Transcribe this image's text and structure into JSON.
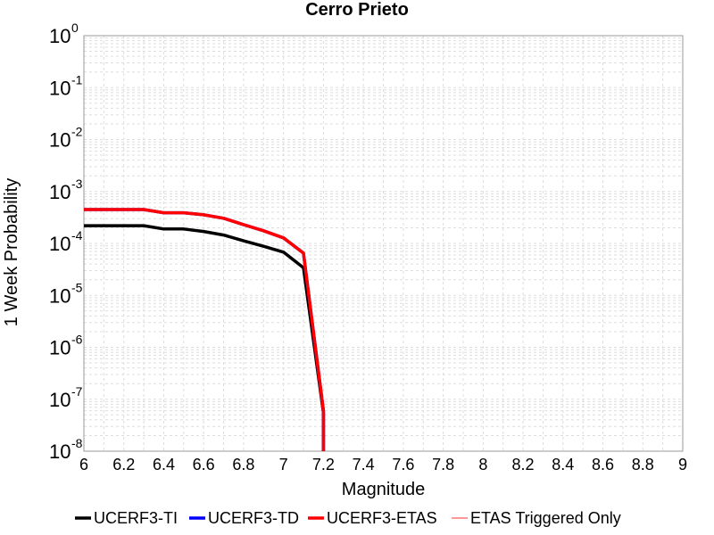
{
  "chart_data": {
    "type": "line",
    "title": "Cerro Prieto",
    "xlabel": "Magnitude",
    "ylabel": "1 Week Probability",
    "xlim": [
      6,
      9
    ],
    "ylim": [
      1e-08,
      1
    ],
    "yscale": "log",
    "grid": true,
    "legend_position": "bottom",
    "x_ticks": [
      "6",
      "6.2",
      "6.4",
      "6.6",
      "6.8",
      "7",
      "7.2",
      "7.4",
      "7.6",
      "7.8",
      "8",
      "8.2",
      "8.4",
      "8.6",
      "8.8",
      "9"
    ],
    "y_ticks": [
      {
        "base": "10",
        "exp": "0"
      },
      {
        "base": "10",
        "exp": "-1"
      },
      {
        "base": "10",
        "exp": "-2"
      },
      {
        "base": "10",
        "exp": "-3"
      },
      {
        "base": "10",
        "exp": "-4"
      },
      {
        "base": "10",
        "exp": "-5"
      },
      {
        "base": "10",
        "exp": "-6"
      },
      {
        "base": "10",
        "exp": "-7"
      },
      {
        "base": "10",
        "exp": "-8"
      }
    ],
    "series": [
      {
        "name": "UCERF3-TI",
        "color": "#000000",
        "x": [
          6.0,
          6.1,
          6.2,
          6.3,
          6.4,
          6.5,
          6.6,
          6.7,
          6.8,
          6.9,
          7.0,
          7.1,
          7.2,
          7.2
        ],
        "y": [
          0.00022,
          0.00022,
          0.00022,
          0.00022,
          0.00019,
          0.00019,
          0.00017,
          0.000145,
          0.000112,
          8.8e-05,
          6.8e-05,
          3.4e-05,
          5.5e-08,
          1e-08
        ]
      },
      {
        "name": "UCERF3-TD",
        "color": "#0000ff",
        "x": [
          6.0,
          6.1,
          6.2,
          6.3,
          6.4,
          6.5,
          6.6,
          6.7,
          6.8,
          6.9,
          7.0,
          7.1,
          7.2,
          7.2
        ],
        "y": [
          0.00045,
          0.00045,
          0.00045,
          0.00045,
          0.00039,
          0.00039,
          0.000355,
          0.000305,
          0.00023,
          0.000175,
          0.000128,
          6.5e-05,
          6e-08,
          1e-08
        ]
      },
      {
        "name": "UCERF3-ETAS",
        "color": "#ff0000",
        "x": [
          6.0,
          6.1,
          6.2,
          6.3,
          6.4,
          6.5,
          6.6,
          6.7,
          6.8,
          6.9,
          7.0,
          7.1,
          7.2,
          7.2
        ],
        "y": [
          0.00045,
          0.00045,
          0.00045,
          0.00045,
          0.00039,
          0.00039,
          0.000355,
          0.000305,
          0.00023,
          0.000175,
          0.000128,
          6.5e-05,
          6e-08,
          1e-08
        ]
      },
      {
        "name": "ETAS Triggered Only",
        "color": "#ff9999",
        "x": [],
        "y": []
      }
    ]
  }
}
